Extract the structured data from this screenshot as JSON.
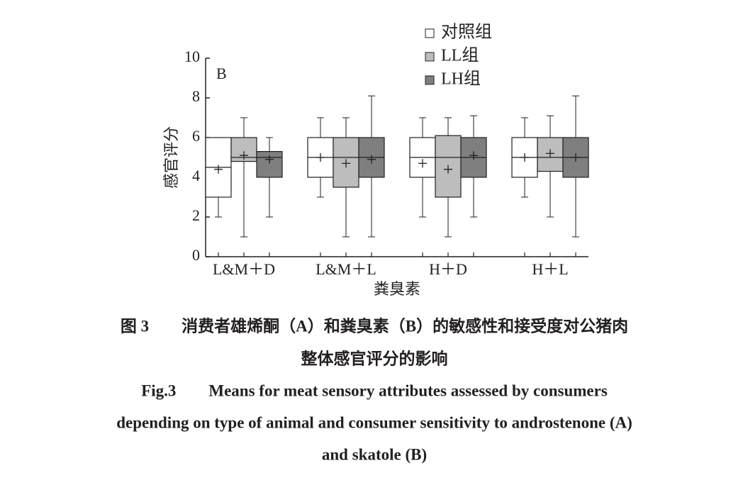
{
  "chart_data": {
    "type": "box",
    "panel_label": "B",
    "x_label": "粪臭素",
    "y_label": "感官评分",
    "categories": [
      "L&M＋D",
      "L&M＋L",
      "H＋D",
      "H＋L"
    ],
    "ylim": [
      0,
      10
    ],
    "yticks": [
      0,
      2,
      4,
      6,
      8,
      10
    ],
    "series": [
      {
        "name": "对照组",
        "color": "#ffffff",
        "min": [
          2,
          3,
          2,
          3
        ],
        "q1": [
          3,
          4,
          4,
          4
        ],
        "median": [
          4.5,
          5,
          5,
          5
        ],
        "q3": [
          6,
          6,
          6,
          6
        ],
        "max": [
          6,
          7,
          7,
          7
        ],
        "mean": [
          4.4,
          5,
          4.7,
          5
        ]
      },
      {
        "name": "LL组",
        "color": "#bdbdbd",
        "min": [
          1,
          1,
          1,
          2
        ],
        "q1": [
          4.8,
          3.5,
          3,
          4.3
        ],
        "median": [
          5,
          5,
          5,
          5
        ],
        "q3": [
          6,
          6,
          6.1,
          6
        ],
        "max": [
          7,
          7,
          7,
          7.1
        ],
        "mean": [
          5.1,
          4.7,
          4.4,
          5.2
        ]
      },
      {
        "name": "LH组",
        "color": "#7f7f7f",
        "min": [
          2,
          1,
          2,
          1
        ],
        "q1": [
          4,
          4,
          4,
          4
        ],
        "median": [
          5,
          5,
          5,
          5
        ],
        "q3": [
          5.3,
          6,
          6,
          6
        ],
        "max": [
          6,
          8.1,
          7.1,
          8.1
        ],
        "mean": [
          4.9,
          4.9,
          5.1,
          5
        ]
      }
    ]
  },
  "caption": {
    "cn": [
      "图 3　　消费者雄烯酮（A）和粪臭素（B）的敏感性和接受度对公猪肉",
      "整体感官评分的影响"
    ],
    "en": [
      "Fig.3　　Means for meat sensory attributes assessed by consumers",
      "depending on type of animal and consumer sensitivity to androstenone (A)",
      "and skatole (B)"
    ]
  }
}
